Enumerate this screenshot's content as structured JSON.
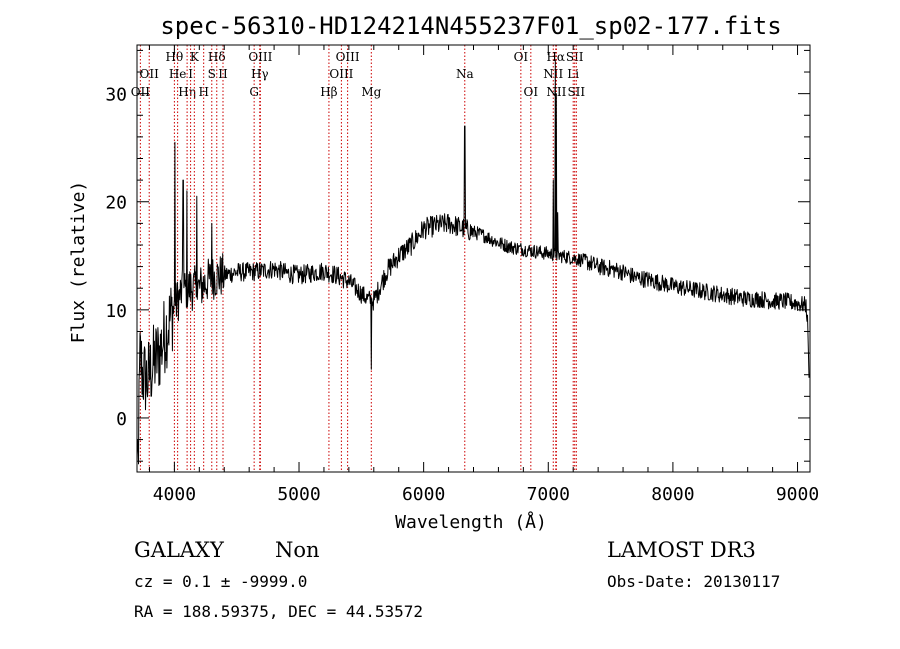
{
  "chart_data": {
    "type": "line",
    "title": "spec-56310-HD124214N455237F01_sp02-177.fits",
    "xlabel": "Wavelength (Å)",
    "ylabel": "Flux (relative)",
    "xlim": [
      3700,
      9100
    ],
    "ylim": [
      -5,
      34.5
    ],
    "xticks": [
      4000,
      5000,
      6000,
      7000,
      8000,
      9000
    ],
    "yticks": [
      0,
      10,
      20,
      30
    ],
    "x_minor_step": 200,
    "y_minor_step": 2,
    "line_color": "#000000",
    "marker_color": "#cc0000",
    "series": [
      {
        "name": "flux",
        "anchors": [
          [
            3700,
            0.0
          ],
          [
            3710,
            -3.0
          ],
          [
            3725,
            6.0
          ],
          [
            3745,
            4.0
          ],
          [
            3780,
            3.5
          ],
          [
            3830,
            5.0
          ],
          [
            3880,
            6.0
          ],
          [
            3930,
            8.0
          ],
          [
            3990,
            10.0
          ],
          [
            4050,
            11.5
          ],
          [
            4100,
            12.0
          ],
          [
            4200,
            12.0
          ],
          [
            4300,
            13.0
          ],
          [
            4400,
            13.2
          ],
          [
            4500,
            13.5
          ],
          [
            4600,
            13.5
          ],
          [
            4700,
            13.6
          ],
          [
            4800,
            13.8
          ],
          [
            4900,
            13.4
          ],
          [
            5000,
            13.2
          ],
          [
            5100,
            13.4
          ],
          [
            5200,
            13.6
          ],
          [
            5300,
            13.2
          ],
          [
            5400,
            12.6
          ],
          [
            5500,
            11.5
          ],
          [
            5550,
            11.0
          ],
          [
            5600,
            10.8
          ],
          [
            5700,
            13.5
          ],
          [
            5800,
            15.0
          ],
          [
            5900,
            16.0
          ],
          [
            6000,
            17.5
          ],
          [
            6100,
            17.8
          ],
          [
            6200,
            18.0
          ],
          [
            6300,
            17.6
          ],
          [
            6400,
            17.2
          ],
          [
            6500,
            16.8
          ],
          [
            6600,
            16.2
          ],
          [
            6700,
            15.8
          ],
          [
            6800,
            15.6
          ],
          [
            6900,
            15.4
          ],
          [
            7000,
            15.2
          ],
          [
            7100,
            15.0
          ],
          [
            7200,
            14.8
          ],
          [
            7300,
            14.5
          ],
          [
            7400,
            14.0
          ],
          [
            7500,
            13.8
          ],
          [
            7600,
            13.5
          ],
          [
            7700,
            13.0
          ],
          [
            7800,
            12.8
          ],
          [
            7900,
            12.5
          ],
          [
            8000,
            12.2
          ],
          [
            8100,
            12.0
          ],
          [
            8200,
            11.8
          ],
          [
            8300,
            11.6
          ],
          [
            8400,
            11.4
          ],
          [
            8500,
            11.2
          ],
          [
            8600,
            11.0
          ],
          [
            8700,
            11.0
          ],
          [
            8800,
            10.8
          ],
          [
            8900,
            10.8
          ],
          [
            9000,
            10.6
          ],
          [
            9070,
            10.4
          ],
          [
            9085,
            8.0
          ],
          [
            9095,
            1.0
          ]
        ],
        "spikes": [
          [
            4005,
            25.5
          ],
          [
            4070,
            22.0
          ],
          [
            4100,
            21.0
          ],
          [
            4180,
            20.5
          ],
          [
            4300,
            18.0
          ],
          [
            5580,
            4.5
          ],
          [
            6330,
            27.0
          ],
          [
            7040,
            22.0
          ],
          [
            7057,
            33.0
          ],
          [
            7063,
            30.0
          ],
          [
            7075,
            19.0
          ]
        ]
      }
    ],
    "line_markers": [
      {
        "wavelength": 3727,
        "label": "OII",
        "row": 3
      },
      {
        "wavelength": 3798,
        "label": "OII",
        "row": 2
      },
      {
        "wavelength": 4000,
        "label": "Hθ",
        "row": 1
      },
      {
        "wavelength": 4026,
        "label": "He",
        "row": 2
      },
      {
        "wavelength": 4102,
        "label": "Hη",
        "row": 3
      },
      {
        "wavelength": 4130,
        "label": "I",
        "row": 2
      },
      {
        "wavelength": 4160,
        "label": "K",
        "row": 1
      },
      {
        "wavelength": 4235,
        "label": "H",
        "row": 3
      },
      {
        "wavelength": 4300,
        "label": "S",
        "row": 2
      },
      {
        "wavelength": 4340,
        "label": "Hδ",
        "row": 1
      },
      {
        "wavelength": 4390,
        "label": "II",
        "row": 2
      },
      {
        "wavelength": 4640,
        "label": "G",
        "row": 3
      },
      {
        "wavelength": 4685,
        "label": "Hγ",
        "row": 2
      },
      {
        "wavelength": 4690,
        "label": "OIII",
        "row": 1
      },
      {
        "wavelength": 5240,
        "label": "Hβ",
        "row": 3
      },
      {
        "wavelength": 5340,
        "label": "OIII",
        "row": 2
      },
      {
        "wavelength": 5390,
        "label": "OIII",
        "row": 1
      },
      {
        "wavelength": 5580,
        "label": "Mg",
        "row": 3
      },
      {
        "wavelength": 6330,
        "label": "Na",
        "row": 2
      },
      {
        "wavelength": 6780,
        "label": "OI",
        "row": 1
      },
      {
        "wavelength": 6860,
        "label": "OI",
        "row": 3
      },
      {
        "wavelength": 7040,
        "label": "NII",
        "row": 2
      },
      {
        "wavelength": 7060,
        "label": "Hα",
        "row": 1
      },
      {
        "wavelength": 7065,
        "label": "NII",
        "row": 3
      },
      {
        "wavelength": 7200,
        "label": "Li",
        "row": 2
      },
      {
        "wavelength": 7212,
        "label": "SII",
        "row": 1
      },
      {
        "wavelength": 7225,
        "label": "SII",
        "row": 3
      }
    ]
  },
  "info": {
    "obj_class": "GALAXY",
    "subclass": "Non",
    "survey": "LAMOST DR3",
    "cz_line": "cz = 0.1 ± -9999.0",
    "obs_date": "Obs-Date: 20130117",
    "coords": "RA = 188.59375, DEC =  44.53572"
  }
}
